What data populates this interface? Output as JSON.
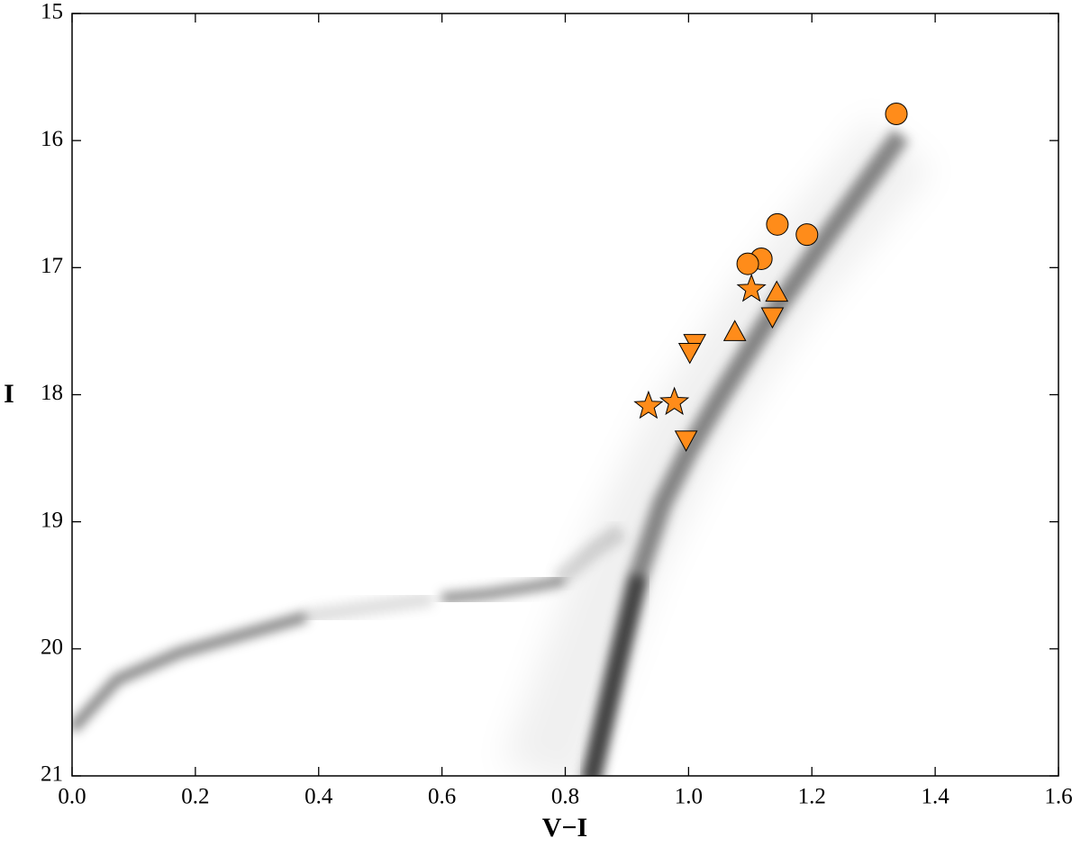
{
  "chart_data": {
    "type": "scatter",
    "x_label": "V−I",
    "y_label": "I",
    "xlim": [
      0,
      1.6
    ],
    "ylim": [
      21,
      15
    ],
    "xticks": [
      {
        "value": 0,
        "label": "0.0"
      },
      0.2,
      0.4,
      0.6,
      0.8,
      {
        "value": 1,
        "label": "1.0"
      },
      1.2,
      1.4,
      1.6
    ],
    "yticks": [
      15,
      16,
      17,
      18,
      19,
      20,
      21
    ],
    "series": [
      {
        "marker": "circle",
        "color": "#ff8c1a",
        "x": [
          1.337,
          1.144,
          1.192,
          1.118,
          1.096
        ],
        "values": [
          15.79,
          16.66,
          16.74,
          16.93,
          16.97
        ]
      },
      {
        "marker": "star",
        "color": "#ff8c1a",
        "x": [
          1.102,
          0.935,
          0.977
        ],
        "values": [
          17.17,
          18.09,
          18.06
        ]
      },
      {
        "marker": "triangle-up",
        "color": "#ff8c1a",
        "x": [
          1.143,
          1.075
        ],
        "values": [
          17.2,
          17.51
        ]
      },
      {
        "marker": "triangle-down",
        "color": "#ff8c1a",
        "x": [
          1.136,
          1.01,
          1.002,
          0.996
        ],
        "values": [
          17.38,
          17.59,
          17.66,
          18.35
        ]
      }
    ]
  }
}
